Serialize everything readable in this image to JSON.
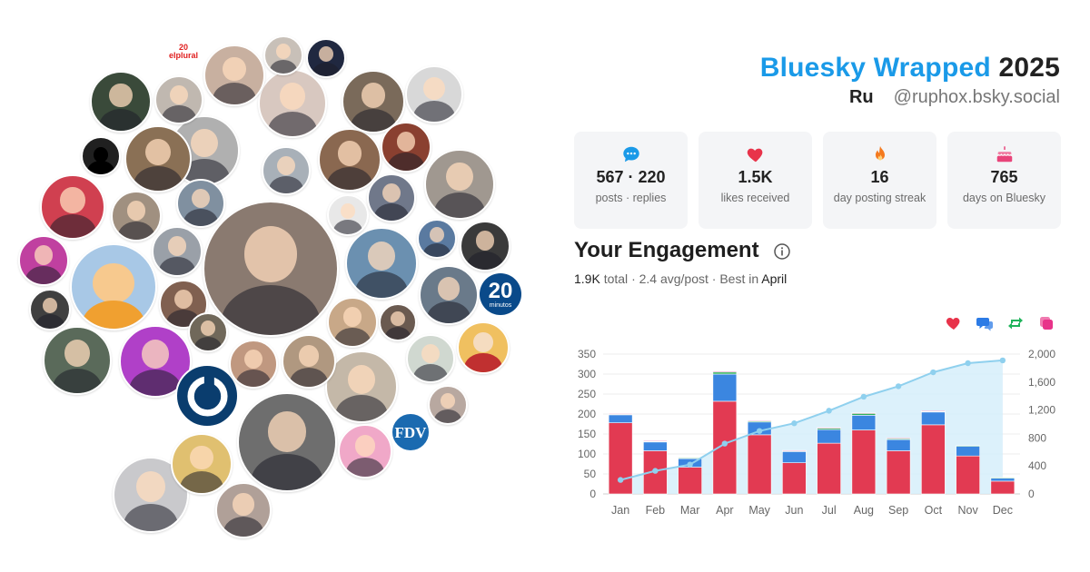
{
  "header": {
    "brand": "Bluesky Wrapped",
    "year": "2025",
    "user_name": "Ru",
    "user_handle": "@ruphox.bsky.social"
  },
  "avatar_logos": {
    "elplural": "elplural",
    "elplural_num": "20",
    "minutos_num": "20",
    "minutos_word": "minutos",
    "fdv": "FDV"
  },
  "stats": [
    {
      "icon": "speech-bubble-icon",
      "value": "567 · 220",
      "label": "posts · replies",
      "color": "#1a9ae8"
    },
    {
      "icon": "heart-icon",
      "value": "1.5K",
      "label": "likes received",
      "color": "#e8334a"
    },
    {
      "icon": "flame-icon",
      "value": "16",
      "label": "day posting streak",
      "color": "#f47a1f"
    },
    {
      "icon": "cake-icon",
      "value": "765",
      "label": "days on Bluesky",
      "color": "#e8447a"
    }
  ],
  "engagement": {
    "title": "Your Engagement",
    "total_value": "1.9K",
    "total_word": "total",
    "avg": "· 2.4 avg/post · Best in",
    "best_month": "April"
  },
  "legend": [
    {
      "icon": "heart-icon",
      "color": "#e8334a"
    },
    {
      "icon": "reply-icon",
      "color": "#2c7be5"
    },
    {
      "icon": "repost-icon",
      "color": "#1fb35b"
    },
    {
      "icon": "quote-icon",
      "color": "#e8338a"
    }
  ],
  "colors": {
    "likes": "#e23a52",
    "replies": "#3b86e0",
    "reposts": "#2fb35b",
    "cumulative_line": "#8fd0ee",
    "cumulative_fill": "#d6eefa"
  },
  "chart_data": {
    "type": "bar",
    "categories": [
      "Jan",
      "Feb",
      "Mar",
      "Apr",
      "May",
      "Jun",
      "Jul",
      "Aug",
      "Sep",
      "Oct",
      "Nov",
      "Dec"
    ],
    "series": [
      {
        "values": [
          178,
          108,
          67,
          232,
          148,
          78,
          127,
          160,
          108,
          173,
          95,
          32
        ]
      },
      {
        "values": [
          20,
          22,
          22,
          68,
          32,
          28,
          34,
          37,
          28,
          32,
          25,
          8
        ]
      },
      {
        "values": [
          2,
          2,
          1,
          5,
          3,
          2,
          4,
          5,
          3,
          2,
          1,
          1
        ]
      },
      {
        "values": [
          1,
          1,
          0,
          2,
          1,
          1,
          1,
          1,
          1,
          1,
          0,
          0
        ]
      }
    ],
    "cumulative": [
      200,
      330,
      420,
      720,
      900,
      1010,
      1190,
      1390,
      1540,
      1740,
      1870,
      1910
    ],
    "ylim": [
      0,
      350
    ],
    "y2lim": [
      0,
      2000
    ],
    "yticks": [
      "0",
      "50",
      "100",
      "150",
      "200",
      "250",
      "300",
      "350"
    ],
    "y2ticks": [
      "0",
      "400",
      "800",
      "1,200",
      "1,600",
      "2,000"
    ],
    "grid": true
  }
}
